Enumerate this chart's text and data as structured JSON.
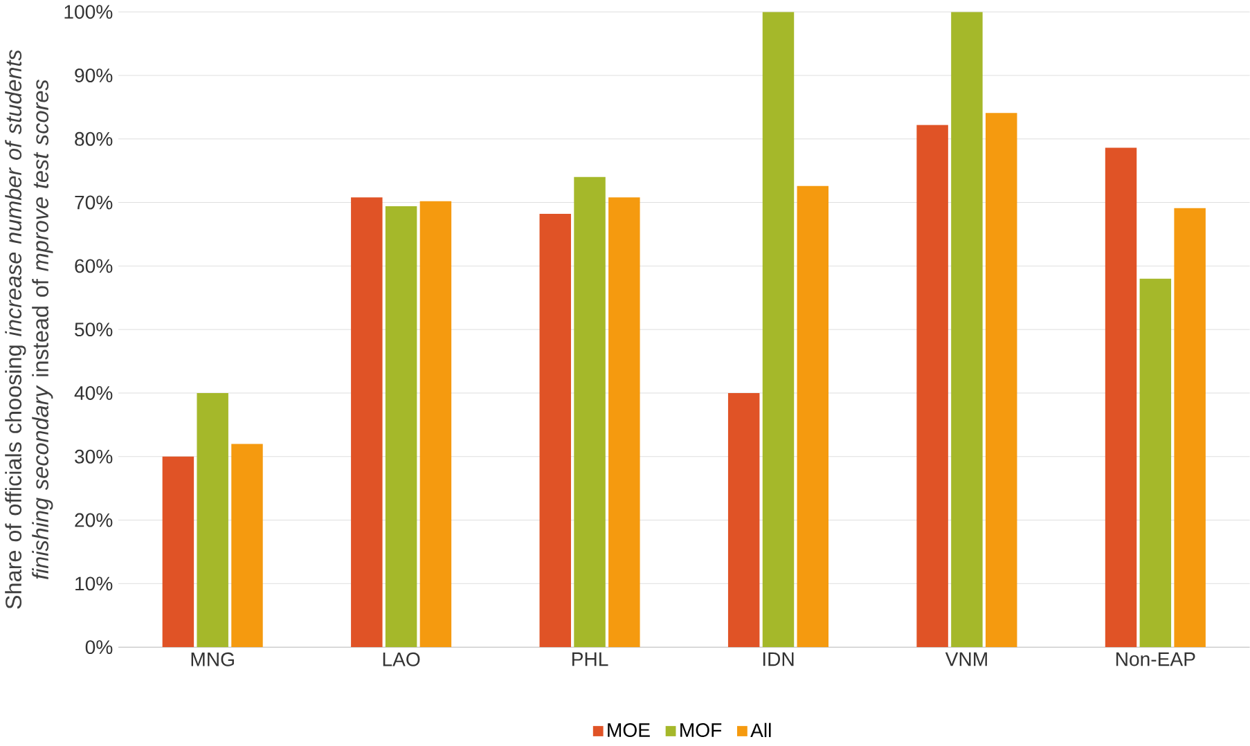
{
  "chart_data": {
    "type": "bar",
    "ylabel": "Share of officials choosing *increase number of students finishing secondary* instead of *mprove test scores*",
    "categories": [
      "MNG",
      "LAO",
      "PHL",
      "IDN",
      "VNM",
      "Non-EAP"
    ],
    "series": [
      {
        "name": "MOE",
        "color": "#e05326",
        "values": [
          30,
          70.8,
          68.2,
          40,
          82.2,
          78.6
        ]
      },
      {
        "name": "MOF",
        "color": "#a5b82a",
        "values": [
          40,
          69.4,
          74,
          100,
          100,
          58
        ]
      },
      {
        "name": "All",
        "color": "#f59a0f",
        "values": [
          32,
          70.2,
          70.8,
          72.6,
          84.1,
          69.1
        ]
      }
    ],
    "ylim": [
      0,
      100
    ],
    "yticks": [
      {
        "value": 0,
        "label": "0%"
      },
      {
        "value": 10,
        "label": "10%"
      },
      {
        "value": 20,
        "label": "20%"
      },
      {
        "value": 30,
        "label": "30%"
      },
      {
        "value": 40,
        "label": "40%"
      },
      {
        "value": 50,
        "label": "50%"
      },
      {
        "value": 60,
        "label": "60%"
      },
      {
        "value": 70,
        "label": "70%"
      },
      {
        "value": 80,
        "label": "80%"
      },
      {
        "value": 90,
        "label": "90%"
      },
      {
        "value": 100,
        "label": "100%"
      }
    ],
    "grid": "y",
    "legend": "bottom"
  }
}
